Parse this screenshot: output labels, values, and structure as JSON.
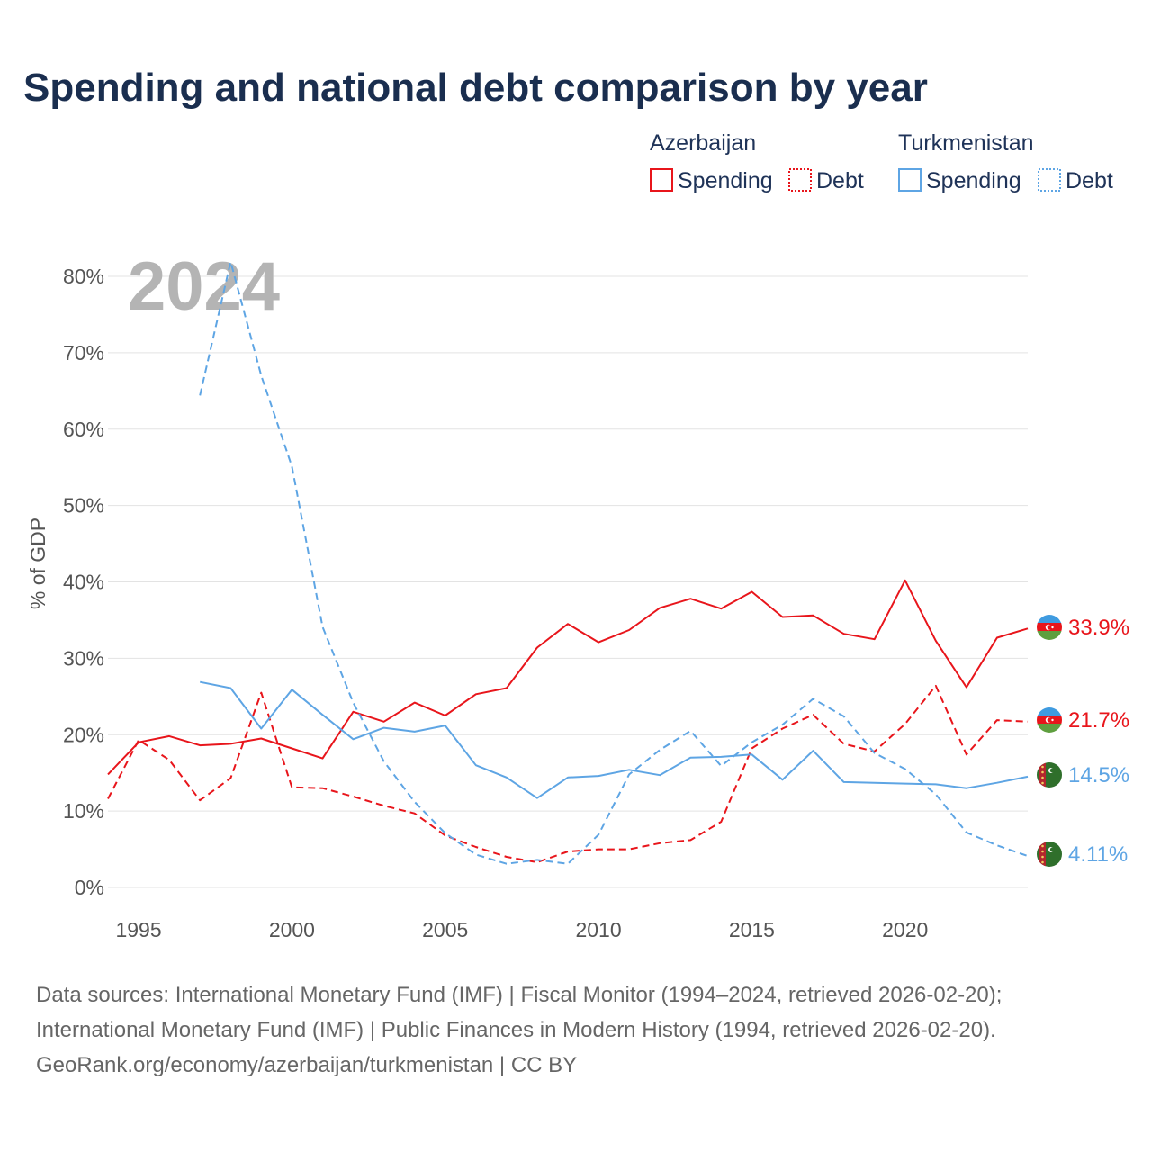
{
  "chart_data": {
    "type": "line",
    "title": "Spending and national debt comparison by year",
    "ylabel": "% of GDP",
    "xlabel": "",
    "xlim": [
      1994,
      2024
    ],
    "ylim": [
      0,
      80
    ],
    "x_ticks": [
      1995,
      2000,
      2005,
      2010,
      2015,
      2020
    ],
    "y_ticks": [
      {
        "value": 0,
        "label": "0%"
      },
      {
        "value": 10,
        "label": "10%"
      },
      {
        "value": 20,
        "label": "20%"
      },
      {
        "value": 30,
        "label": "30%"
      },
      {
        "value": 40,
        "label": "40%"
      },
      {
        "value": 50,
        "label": "50%"
      },
      {
        "value": 60,
        "label": "60%"
      },
      {
        "value": 70,
        "label": "70%"
      },
      {
        "value": 80,
        "label": "80%"
      }
    ],
    "current_year": "2024",
    "legend": {
      "groups": [
        {
          "country": "Azerbaijan",
          "items": [
            "Spending",
            "Debt"
          ],
          "color": "#e8151b"
        },
        {
          "country": "Turkmenistan",
          "items": [
            "Spending",
            "Debt"
          ],
          "color": "#5ea5e4"
        }
      ]
    },
    "series": [
      {
        "name": "Azerbaijan Spending",
        "country": "Azerbaijan",
        "metric": "Spending",
        "color": "#e8151b",
        "dash": "solid",
        "end_label": "33.9%",
        "x": [
          1994,
          1995,
          1996,
          1997,
          1998,
          1999,
          2000,
          2001,
          2002,
          2003,
          2004,
          2005,
          2006,
          2007,
          2008,
          2009,
          2010,
          2011,
          2012,
          2013,
          2014,
          2015,
          2016,
          2017,
          2018,
          2019,
          2020,
          2021,
          2022,
          2023,
          2024
        ],
        "values": [
          14.8,
          19.0,
          19.8,
          18.6,
          18.8,
          19.5,
          18.2,
          16.9,
          23.0,
          21.7,
          24.2,
          22.5,
          25.3,
          26.1,
          31.4,
          34.5,
          32.1,
          33.7,
          36.6,
          37.8,
          36.5,
          38.7,
          35.4,
          35.6,
          33.2,
          32.5,
          40.2,
          32.3,
          26.2,
          32.7,
          33.9
        ]
      },
      {
        "name": "Azerbaijan Debt",
        "country": "Azerbaijan",
        "metric": "Debt",
        "color": "#e8151b",
        "dash": "dashed",
        "end_label": "21.7%",
        "x": [
          1994,
          1995,
          1996,
          1997,
          1998,
          1999,
          2000,
          2001,
          2002,
          2003,
          2004,
          2005,
          2006,
          2007,
          2008,
          2009,
          2010,
          2011,
          2012,
          2013,
          2014,
          2015,
          2016,
          2017,
          2018,
          2019,
          2020,
          2021,
          2022,
          2023,
          2024
        ],
        "values": [
          11.6,
          19.3,
          16.7,
          11.4,
          14.3,
          25.5,
          13.1,
          13.0,
          11.9,
          10.7,
          9.7,
          6.8,
          5.3,
          4.0,
          3.3,
          4.7,
          5.0,
          5.0,
          5.8,
          6.2,
          8.6,
          18.2,
          20.8,
          22.6,
          18.8,
          17.8,
          21.4,
          26.4,
          17.4,
          21.9,
          21.7
        ]
      },
      {
        "name": "Turkmenistan Spending",
        "country": "Turkmenistan",
        "metric": "Spending",
        "color": "#5ea5e4",
        "dash": "solid",
        "end_label": "14.5%",
        "x": [
          1997,
          1998,
          1999,
          2000,
          2001,
          2002,
          2003,
          2004,
          2005,
          2006,
          2007,
          2008,
          2009,
          2010,
          2011,
          2012,
          2013,
          2014,
          2015,
          2016,
          2017,
          2018,
          2019,
          2020,
          2021,
          2022,
          2023,
          2024
        ],
        "values": [
          26.9,
          26.1,
          20.8,
          25.9,
          22.6,
          19.4,
          20.9,
          20.4,
          21.2,
          16.0,
          14.4,
          11.7,
          14.4,
          14.6,
          15.4,
          14.7,
          17.0,
          17.1,
          17.4,
          14.1,
          17.9,
          13.8,
          13.7,
          13.6,
          13.5,
          13.0,
          13.7,
          14.5
        ]
      },
      {
        "name": "Turkmenistan Debt",
        "country": "Turkmenistan",
        "metric": "Debt",
        "color": "#5ea5e4",
        "dash": "dashed",
        "end_label": "4.11%",
        "x": [
          1997,
          1998,
          1999,
          2000,
          2001,
          2002,
          2003,
          2004,
          2005,
          2006,
          2007,
          2008,
          2009,
          2010,
          2011,
          2012,
          2013,
          2014,
          2015,
          2016,
          2017,
          2018,
          2019,
          2020,
          2021,
          2022,
          2023,
          2024
        ],
        "values": [
          64.4,
          81.9,
          67.0,
          55.1,
          34.1,
          24.2,
          16.5,
          11.2,
          7.1,
          4.3,
          3.1,
          3.6,
          3.1,
          6.9,
          14.8,
          18.0,
          20.5,
          15.9,
          19.0,
          21.3,
          24.7,
          22.4,
          17.6,
          15.5,
          12.2,
          7.2,
          5.5,
          4.11
        ]
      }
    ]
  },
  "footer": {
    "line1": "Data sources: International Monetary Fund (IMF) | Fiscal Monitor (1994–2024, retrieved 2026-02-20);",
    "line2": "International Monetary Fund (IMF) | Public Finances in Modern History (1994, retrieved 2026-02-20).",
    "line3": "GeoRank.org/economy/azerbaijan/turkmenistan | CC BY"
  },
  "colors": {
    "title": "#1a2e4f",
    "azerbaijan": "#e8151b",
    "turkmenistan": "#5ea5e4",
    "grid": "#e3e3e3",
    "tick": "#555555",
    "watermark": "#b4b4b4"
  }
}
